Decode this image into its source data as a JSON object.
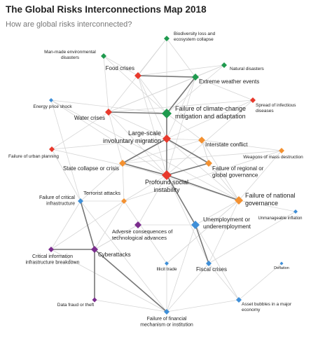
{
  "header": {
    "title": "The Global Risks Interconnections Map 2018",
    "subtitle": "How are global risks interconnected?"
  },
  "nodes": [
    {
      "label": [
        "Biodiversity loss and",
        "ecosystem collapse"
      ],
      "color": "#1f9a4e"
    },
    {
      "label": [
        "Man-made environmental",
        "disasters"
      ],
      "color": "#1f9a4e"
    },
    {
      "label": [
        "Food crises"
      ],
      "color": "#e8392c"
    },
    {
      "label": [
        "Natural disasters"
      ],
      "color": "#1f9a4e"
    },
    {
      "label": [
        "Extreme weather events"
      ],
      "color": "#1f9a4e"
    },
    {
      "label": [
        "Energy price shock"
      ],
      "color": "#3f8fd8"
    },
    {
      "label": [
        "Spread of infectious",
        "diseases"
      ],
      "color": "#e8392c"
    },
    {
      "label": [
        "Water crises"
      ],
      "color": "#e8392c"
    },
    {
      "label": [
        "Failure of climate-change",
        "mitigation and adaptation"
      ],
      "color": "#1f9a4e"
    },
    {
      "label": [
        "Large-scale",
        "involuntary migration"
      ],
      "color": "#e8392c"
    },
    {
      "label": [
        "Interstate conflict"
      ],
      "color": "#f39131"
    },
    {
      "label": [
        "Weapons of mass destruction"
      ],
      "color": "#f39131"
    },
    {
      "label": [
        "Failure of urban planning"
      ],
      "color": "#e8392c"
    },
    {
      "label": [
        "State collapse or crisis"
      ],
      "color": "#f39131"
    },
    {
      "label": [
        "Failure of regional or",
        "global governance"
      ],
      "color": "#f39131"
    },
    {
      "label": [
        "Profound social",
        "instability"
      ],
      "color": "#e8392c"
    },
    {
      "label": [
        "Terrorist attacks"
      ],
      "color": "#f39131"
    },
    {
      "label": [
        "Failure of national",
        "governance"
      ],
      "color": "#f39131"
    },
    {
      "label": [
        "Failure of critical",
        "infrastructure"
      ],
      "color": "#3f8fd8"
    },
    {
      "label": [
        "Unmanageable inflation"
      ],
      "color": "#3f8fd8"
    },
    {
      "label": [
        "Unemployment or",
        "underemployment"
      ],
      "color": "#3f8fd8"
    },
    {
      "label": [
        "Adverse consequences of",
        "technological advances"
      ],
      "color": "#7b2d8e"
    },
    {
      "label": [
        "Critical information",
        "infrastructure breakdown"
      ],
      "color": "#7b2d8e"
    },
    {
      "label": [
        "Cyberattacks"
      ],
      "color": "#7b2d8e"
    },
    {
      "label": [
        "Illicit trade"
      ],
      "color": "#3f8fd8"
    },
    {
      "label": [
        "Fiscal crises"
      ],
      "color": "#3f8fd8"
    },
    {
      "label": [
        "Deflation"
      ],
      "color": "#3f8fd8"
    },
    {
      "label": [
        "Data fraud or theft"
      ],
      "color": "#7b2d8e"
    },
    {
      "label": [
        "Asset bubbles in a major",
        "economy"
      ],
      "color": "#3f8fd8"
    },
    {
      "label": [
        "Failure of financial",
        "mechanism or institution"
      ],
      "color": "#3f8fd8"
    }
  ]
}
